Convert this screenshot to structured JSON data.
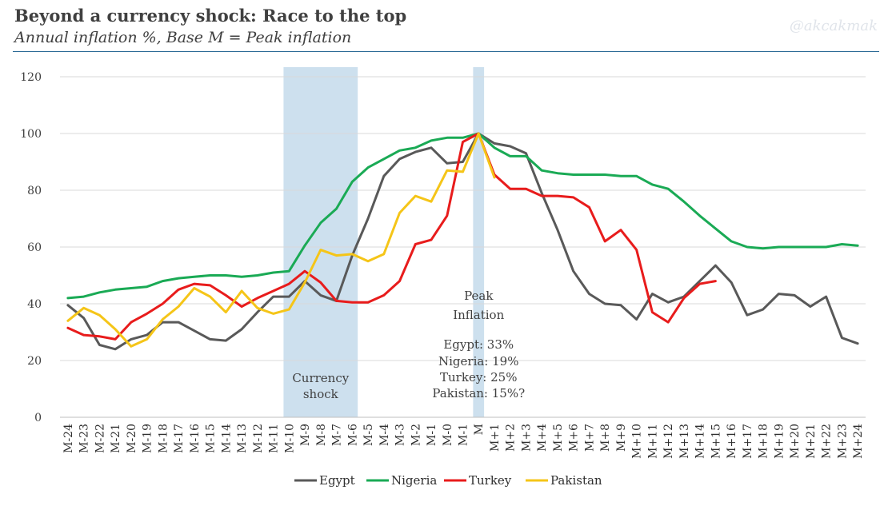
{
  "header": {
    "title": "Beyond a currency shock: Race to the top",
    "subtitle": "Annual inflation %, Base M = Peak inflation",
    "watermark": "@akcakmak"
  },
  "chart_data": {
    "type": "line",
    "categories": [
      "M-24",
      "M-23",
      "M-22",
      "M-21",
      "M-20",
      "M-19",
      "M-18",
      "M-17",
      "M-16",
      "M-15",
      "M-14",
      "M-13",
      "M-12",
      "M-11",
      "M-10",
      "M-9",
      "M-8",
      "M-7",
      "M-6",
      "M-5",
      "M-4",
      "M-3",
      "M-2",
      "M-1",
      "M-0",
      "M-1",
      "M",
      "M+1",
      "M+2",
      "M+3",
      "M+4",
      "M+5",
      "M+6",
      "M+7",
      "M+8",
      "M+9",
      "M+10",
      "M+11",
      "M+12",
      "M+13",
      "M+14",
      "M+15",
      "M+16",
      "M+17",
      "M+18",
      "M+19",
      "M+20",
      "M+21",
      "M+22",
      "M+23",
      "M+24"
    ],
    "ylim": [
      0,
      120
    ],
    "yticks": [
      0,
      20,
      40,
      60,
      80,
      100,
      120
    ],
    "grid": true,
    "legend_position": "bottom",
    "series": [
      {
        "name": "Egypt",
        "color": "#595959",
        "values": [
          39.5,
          35,
          25.5,
          24,
          27.5,
          29,
          33.5,
          33.5,
          30.5,
          27.5,
          27,
          31,
          37,
          42.5,
          42.5,
          48,
          43,
          41,
          57,
          70,
          85,
          91,
          93.5,
          95,
          89.5,
          90,
          100,
          96.5,
          95.5,
          93,
          79,
          66,
          51.5,
          43.5,
          40,
          39.5,
          34.5,
          43.5,
          40.5,
          42.5,
          48,
          53.5,
          47.5,
          36,
          38,
          43.5,
          43,
          39,
          42.5,
          28,
          26
        ]
      },
      {
        "name": "Nigeria",
        "color": "#1aaa55",
        "values": [
          42,
          42.5,
          44,
          45,
          45.5,
          46,
          48,
          49,
          49.5,
          50,
          50,
          49.5,
          50,
          51,
          51.5,
          60.5,
          68.5,
          73.5,
          83,
          88,
          91,
          94,
          95,
          97.5,
          98.5,
          98.5,
          100,
          95,
          92,
          92,
          87,
          86,
          85.5,
          85.5,
          85.5,
          85,
          85,
          82,
          80.5,
          76,
          71,
          66.5,
          62,
          60,
          59.5,
          60,
          60,
          60,
          60,
          61,
          60.5
        ]
      },
      {
        "name": "Turkey",
        "color": "#e81c1c",
        "values": [
          31.5,
          29,
          28.5,
          27.5,
          33.5,
          36.5,
          40,
          45,
          47,
          46.5,
          43,
          39,
          42,
          44.5,
          47,
          51.5,
          47.5,
          41,
          40.5,
          40.5,
          43,
          48,
          61,
          62.5,
          71,
          97,
          100,
          85.5,
          80.5,
          80.5,
          78,
          78,
          77.5,
          74,
          62,
          66,
          59,
          37,
          33.5,
          42,
          47,
          48,
          null,
          null,
          null,
          null,
          null,
          null,
          null,
          null,
          null
        ]
      },
      {
        "name": "Pakistan",
        "color": "#f5c518",
        "values": [
          34,
          38.5,
          36,
          31,
          25,
          27.5,
          34.5,
          39,
          45.5,
          42.5,
          37,
          44.5,
          38.5,
          36.5,
          38,
          47.5,
          59,
          57,
          57.5,
          55,
          57.5,
          72,
          78,
          76,
          87,
          86.5,
          100,
          84.5,
          null,
          null,
          null,
          null,
          null,
          null,
          null,
          null,
          null,
          null,
          null,
          null,
          null,
          null,
          null,
          null,
          null,
          null,
          null,
          null,
          null,
          null,
          null
        ]
      }
    ],
    "shaded_regions": [
      {
        "from": "M-10",
        "to": "M-6",
        "label": [
          "Currency",
          "shock"
        ],
        "color": "#cde0ee"
      },
      {
        "from": "M",
        "to": "M",
        "label": [],
        "color": "#cde0ee"
      }
    ],
    "annotation": {
      "lines": [
        "Peak",
        "Inflation",
        "",
        "Egypt: 33%",
        "Nigeria: 19%",
        "Turkey: 25%",
        "Pakistan: 15%?"
      ]
    }
  }
}
